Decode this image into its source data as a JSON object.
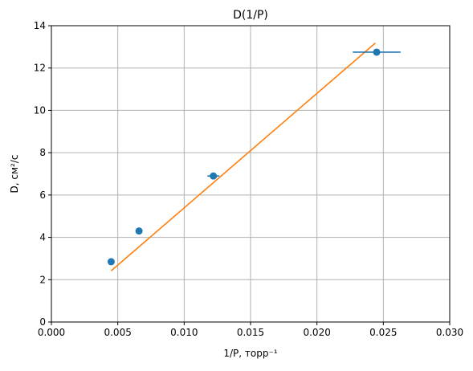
{
  "chart_data": {
    "type": "scatter",
    "title": "D(1/P)",
    "xlabel": "1/P, торр⁻¹",
    "ylabel": "D, см²/с",
    "xlim": [
      0.0,
      0.03
    ],
    "ylim": [
      0,
      14
    ],
    "xticks": [
      "0.000",
      "0.005",
      "0.010",
      "0.015",
      "0.020",
      "0.025",
      "0.030"
    ],
    "xtick_values": [
      0.0,
      0.005,
      0.01,
      0.015,
      0.02,
      0.025,
      0.03
    ],
    "yticks": [
      "0",
      "2",
      "4",
      "6",
      "8",
      "10",
      "12",
      "14"
    ],
    "ytick_values": [
      0,
      2,
      4,
      6,
      8,
      10,
      12,
      14
    ],
    "grid": true,
    "colors": {
      "points": "#1f77b4",
      "fit": "#ff7f0e"
    },
    "series": [
      {
        "kind": "points_with_xerr",
        "points": [
          {
            "x": 0.0045,
            "y": 2.85,
            "xerr": 0.0
          },
          {
            "x": 0.0066,
            "y": 4.3,
            "xerr": 0.0
          },
          {
            "x": 0.0122,
            "y": 6.9,
            "xerr": 0.00045
          },
          {
            "x": 0.0245,
            "y": 12.75,
            "xerr": 0.0018
          }
        ]
      },
      {
        "kind": "fit_line",
        "x": [
          0.0045,
          0.0244
        ],
        "y": [
          2.42,
          13.18
        ]
      }
    ]
  }
}
